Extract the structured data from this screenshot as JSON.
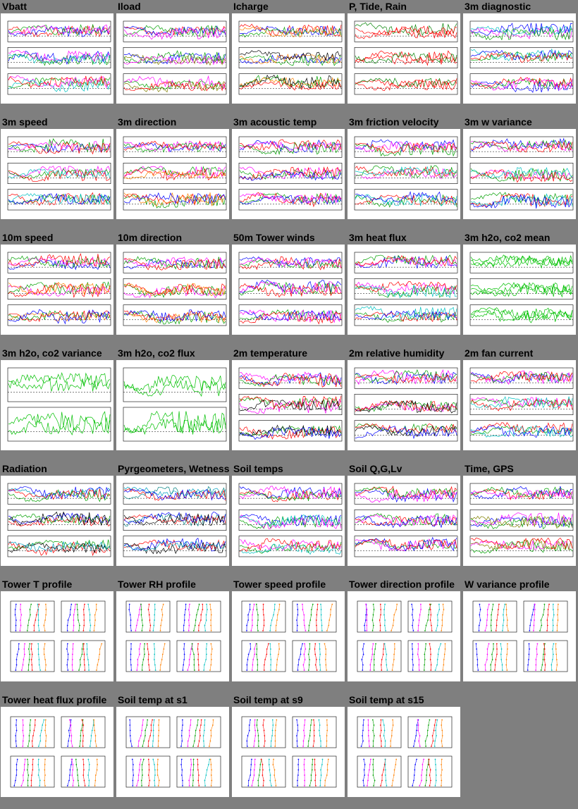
{
  "cells": [
    {
      "title": "Vbatt",
      "kind": "ts",
      "seed": 1,
      "colors": [
        "#ff0000",
        "#0000ff",
        "#00a000",
        "#ff00ff",
        "#00c0c0"
      ]
    },
    {
      "title": "Iload",
      "kind": "ts",
      "seed": 2,
      "colors": [
        "#ff0000",
        "#0000ff",
        "#00a000",
        "#ff00ff",
        "#808000"
      ]
    },
    {
      "title": "Icharge",
      "kind": "ts",
      "seed": 3,
      "colors": [
        "#ff0000",
        "#0000ff",
        "#00a000",
        "#ff8000",
        "#000000"
      ]
    },
    {
      "title": "P, Tide, Rain",
      "kind": "ts",
      "seed": 4,
      "colors": [
        "#008000",
        "#ff0000",
        "#ff0000"
      ]
    },
    {
      "title": "3m diagnostic",
      "kind": "ts",
      "seed": 5,
      "colors": [
        "#ff00ff",
        "#00c0c0",
        "#0000ff",
        "#00a000",
        "#ff0000"
      ]
    },
    {
      "title": "3m speed",
      "kind": "ts",
      "seed": 6,
      "colors": [
        "#0000ff",
        "#ff00ff",
        "#00a000",
        "#ff0000",
        "#00c0c0"
      ]
    },
    {
      "title": "3m direction",
      "kind": "ts",
      "seed": 7,
      "colors": [
        "#0000ff",
        "#ff00ff",
        "#00a000",
        "#ff0000",
        "#ff8000"
      ]
    },
    {
      "title": "3m acoustic temp",
      "kind": "ts",
      "seed": 8,
      "colors": [
        "#0000ff",
        "#ff00ff",
        "#00a000",
        "#ff0000"
      ]
    },
    {
      "title": "3m friction velocity",
      "kind": "ts",
      "seed": 9,
      "colors": [
        "#0000ff",
        "#ff00ff",
        "#00a000",
        "#ff0000",
        "#00c0c0"
      ]
    },
    {
      "title": "3m w variance",
      "kind": "ts",
      "seed": 10,
      "colors": [
        "#0000ff",
        "#ff00ff",
        "#00a000",
        "#ff0000",
        "#00c0c0"
      ]
    },
    {
      "title": "10m speed",
      "kind": "ts",
      "seed": 11,
      "colors": [
        "#0000ff",
        "#ff00ff",
        "#00a000",
        "#ff0000",
        "#ff8000"
      ]
    },
    {
      "title": "10m direction",
      "kind": "ts",
      "seed": 12,
      "colors": [
        "#0000ff",
        "#ff00ff",
        "#00a000",
        "#ff0000",
        "#ff8000"
      ]
    },
    {
      "title": "50m Tower winds",
      "kind": "ts",
      "seed": 13,
      "colors": [
        "#ff0000",
        "#0000ff",
        "#00a000",
        "#ff00ff"
      ]
    },
    {
      "title": "3m heat flux",
      "kind": "ts",
      "seed": 14,
      "colors": [
        "#0000ff",
        "#ff00ff",
        "#00a000",
        "#ff0000",
        "#00c0c0"
      ]
    },
    {
      "title": "3m h2o, co2 mean",
      "kind": "ts",
      "seed": 15,
      "colors": [
        "#00c000",
        "#00c000",
        "#00c000"
      ]
    },
    {
      "title": "3m h2o, co2 variance",
      "kind": "ts2",
      "seed": 16,
      "colors": [
        "#00c000",
        "#00c000"
      ]
    },
    {
      "title": "3m h2o, co2 flux",
      "kind": "ts2",
      "seed": 17,
      "colors": [
        "#00c000",
        "#00c000"
      ]
    },
    {
      "title": "2m temperature",
      "kind": "ts",
      "seed": 18,
      "colors": [
        "#0000ff",
        "#ff00ff",
        "#00a000",
        "#ff0000",
        "#000000"
      ]
    },
    {
      "title": "2m relative humidity",
      "kind": "ts",
      "seed": 19,
      "colors": [
        "#0000ff",
        "#ff00ff",
        "#00a000",
        "#ff0000",
        "#000000"
      ]
    },
    {
      "title": "2m fan current",
      "kind": "ts",
      "seed": 20,
      "colors": [
        "#0000ff",
        "#ff00ff",
        "#00a000",
        "#ff0000",
        "#00c0c0"
      ]
    },
    {
      "title": "Radiation",
      "kind": "ts",
      "seed": 21,
      "colors": [
        "#00a0c0",
        "#0000ff",
        "#ff0000",
        "#00a000",
        "#000000"
      ]
    },
    {
      "title": "Pyrgeometers, Wetness",
      "kind": "ts",
      "seed": 22,
      "colors": [
        "#00a0c0",
        "#008080",
        "#ff0000",
        "#0000ff",
        "#000000"
      ]
    },
    {
      "title": "Soil temps",
      "kind": "ts",
      "seed": 23,
      "colors": [
        "#ff0000",
        "#0000ff",
        "#00a000",
        "#ff00ff",
        "#00c0c0"
      ]
    },
    {
      "title": "Soil Q,G,Lv",
      "kind": "ts",
      "seed": 24,
      "colors": [
        "#0000ff",
        "#ff0000",
        "#00a000",
        "#ff00ff"
      ]
    },
    {
      "title": "Time, GPS",
      "kind": "ts",
      "seed": 25,
      "colors": [
        "#ff0000",
        "#0000ff",
        "#00a000",
        "#ff00ff",
        "#808000"
      ]
    },
    {
      "title": "Tower T profile",
      "kind": "prof",
      "seed": 26,
      "colors": [
        "#0000ff",
        "#ff00ff",
        "#00a000",
        "#ff0000",
        "#00c0c0",
        "#ff8000"
      ]
    },
    {
      "title": "Tower RH profile",
      "kind": "prof",
      "seed": 27,
      "colors": [
        "#0000ff",
        "#ff00ff",
        "#00a000",
        "#ff0000",
        "#00c0c0",
        "#ff8000"
      ]
    },
    {
      "title": "Tower speed profile",
      "kind": "prof",
      "seed": 28,
      "colors": [
        "#0000ff",
        "#ff00ff",
        "#00a000",
        "#ff0000",
        "#00c0c0",
        "#ff8000"
      ]
    },
    {
      "title": "Tower direction profile",
      "kind": "prof",
      "seed": 29,
      "colors": [
        "#0000ff",
        "#ff00ff",
        "#00a000",
        "#ff0000",
        "#00c0c0",
        "#ff8000"
      ]
    },
    {
      "title": "W variance profile",
      "kind": "prof",
      "seed": 30,
      "colors": [
        "#0000ff",
        "#ff00ff",
        "#00a000",
        "#ff0000",
        "#00c0c0",
        "#ff8000"
      ]
    },
    {
      "title": "Tower heat flux profile",
      "kind": "prof",
      "seed": 31,
      "colors": [
        "#0000ff",
        "#ff00ff",
        "#00a000",
        "#ff0000",
        "#00c0c0",
        "#ff8000"
      ]
    },
    {
      "title": "Soil temp at s1",
      "kind": "prof",
      "seed": 32,
      "colors": [
        "#0000ff",
        "#ff00ff",
        "#00a000",
        "#ff0000",
        "#00c0c0",
        "#ff8000"
      ]
    },
    {
      "title": "Soil temp at s9",
      "kind": "prof",
      "seed": 33,
      "colors": [
        "#0000ff",
        "#ff00ff",
        "#00a000",
        "#ff0000",
        "#00c0c0",
        "#ff8000"
      ]
    },
    {
      "title": "Soil temp at s15",
      "kind": "prof",
      "seed": 34,
      "colors": [
        "#0000ff",
        "#ff00ff",
        "#00a000",
        "#ff0000",
        "#00c0c0",
        "#ff8000"
      ]
    }
  ]
}
